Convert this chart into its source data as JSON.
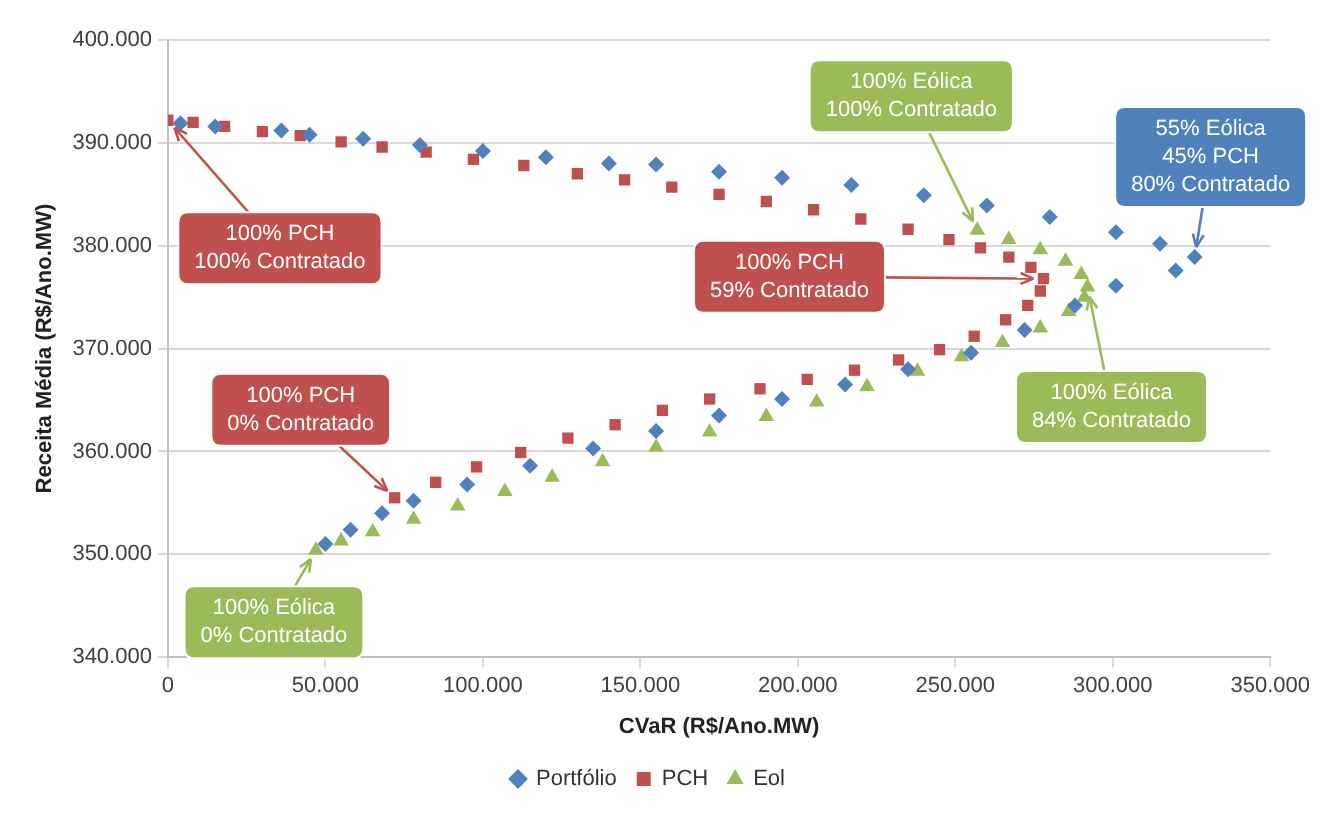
{
  "chart_data": {
    "type": "scatter",
    "xlabel": "CVaR (R$/Ano.MW)",
    "ylabel": "Receita Média (R$/Ano.MW)",
    "xlim": [
      0,
      350000
    ],
    "ylim": [
      340000,
      400000
    ],
    "xticks": [
      0,
      {
        "value": 50000,
        "label": "50.000"
      },
      {
        "value": 100000,
        "label": "100.000"
      },
      {
        "value": 150000,
        "label": "150.000"
      },
      {
        "value": 200000,
        "label": "200.000"
      },
      {
        "value": 250000,
        "label": "250.000"
      },
      {
        "value": 300000,
        "label": "300.000"
      },
      {
        "value": 350000,
        "label": "350.000"
      }
    ],
    "yticks": [
      {
        "value": 340000,
        "label": "340.000"
      },
      {
        "value": 350000,
        "label": "350.000"
      },
      {
        "value": 360000,
        "label": "360.000"
      },
      {
        "value": 370000,
        "label": "370.000"
      },
      {
        "value": 380000,
        "label": "380.000"
      },
      {
        "value": 390000,
        "label": "390.000"
      },
      {
        "value": 400000,
        "label": "400.000"
      }
    ],
    "grid": "y",
    "legend": "bottom",
    "series": [
      {
        "name": "Portfólio",
        "color": "#4f81bd",
        "marker": "diamond",
        "x": [
          4000,
          15000,
          36000,
          45000,
          62000,
          80000,
          100000,
          120000,
          140000,
          155000,
          175000,
          195000,
          217000,
          240000,
          260000,
          280000,
          301000,
          315000,
          326000,
          320000,
          301000,
          288000,
          272000,
          255000,
          235000,
          215000,
          195000,
          175000,
          155000,
          135000,
          115000,
          95000,
          78000,
          68000,
          58000,
          50000
        ],
        "values": [
          391900,
          391600,
          391200,
          390800,
          390400,
          389800,
          389200,
          388600,
          388000,
          387900,
          387200,
          386600,
          385900,
          384900,
          383900,
          382800,
          381300,
          380200,
          378900,
          377600,
          376100,
          374200,
          371800,
          369600,
          368000,
          366500,
          365100,
          363500,
          362000,
          360300,
          358600,
          356800,
          355200,
          354000,
          352400,
          351000
        ]
      },
      {
        "name": "PCH",
        "color": "#c0504d",
        "marker": "square",
        "x": [
          0,
          8000,
          18000,
          30000,
          42000,
          55000,
          68000,
          82000,
          97000,
          113000,
          130000,
          145000,
          160000,
          175000,
          190000,
          205000,
          220000,
          235000,
          248000,
          258000,
          267000,
          274000,
          278000,
          277000,
          273000,
          266000,
          256000,
          245000,
          232000,
          218000,
          203000,
          188000,
          172000,
          157000,
          142000,
          127000,
          112000,
          98000,
          85000,
          72000
        ],
        "values": [
          392200,
          392000,
          391600,
          391100,
          390700,
          390100,
          389600,
          389100,
          388400,
          387800,
          387000,
          386400,
          385700,
          385000,
          384300,
          383500,
          382600,
          381600,
          380600,
          379800,
          378900,
          377900,
          376800,
          375600,
          374200,
          372800,
          371200,
          369900,
          368900,
          367900,
          367000,
          366100,
          365100,
          364000,
          362600,
          361300,
          359900,
          358500,
          357000,
          355500
        ]
      },
      {
        "name": "Eol",
        "color": "#9bbb59",
        "marker": "triangle",
        "x": [
          47000,
          55000,
          65000,
          78000,
          92000,
          107000,
          122000,
          138000,
          155000,
          172000,
          190000,
          206000,
          222000,
          238000,
          252000,
          265000,
          277000,
          286000,
          291000,
          292000,
          290000,
          285000,
          277000,
          267000,
          257000
        ],
        "values": [
          350400,
          351300,
          352200,
          353400,
          354700,
          356100,
          357500,
          359000,
          360400,
          361900,
          363400,
          364800,
          366300,
          367800,
          369200,
          370600,
          372000,
          373600,
          375000,
          376000,
          377200,
          378500,
          379600,
          380600,
          381500
        ]
      }
    ],
    "annotations": [
      {
        "text": "100% PCH\n100% Contratado",
        "x": 0,
        "y": 392200
      },
      {
        "text": "100% PCH\n0% Contratado",
        "x": 72000,
        "y": 355500
      },
      {
        "text": "100% Eólica\n0% Contratado",
        "x": 47000,
        "y": 350400
      },
      {
        "text": "100% PCH\n59% Contratado",
        "x": 278000,
        "y": 376800
      },
      {
        "text": "100% Eólica\n100% Contratado",
        "x": 257000,
        "y": 381500
      },
      {
        "text": "55% Eólica\n45% PCH\n80% Contratado",
        "x": 326000,
        "y": 378900
      },
      {
        "text": "100% Eólica\n84% Contratado",
        "x": 292000,
        "y": 376000
      }
    ]
  }
}
